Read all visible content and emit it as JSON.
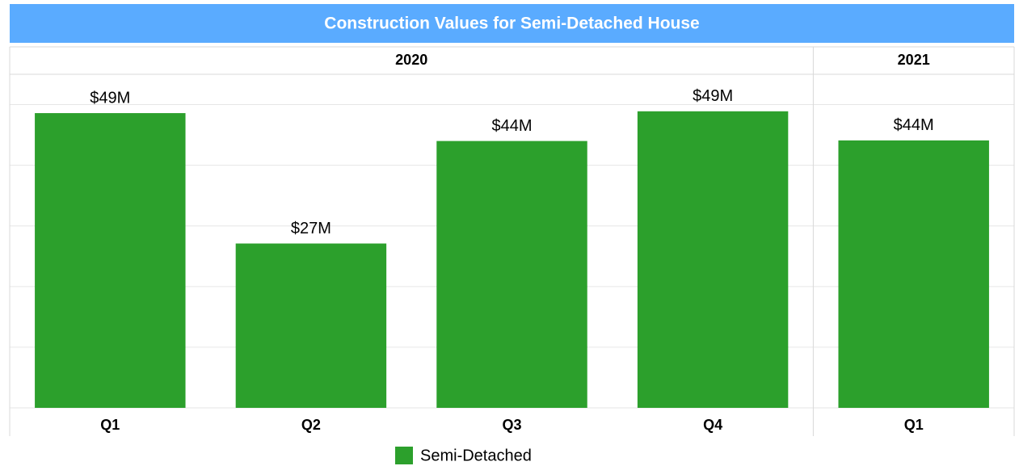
{
  "chart_data": {
    "type": "bar",
    "title": "Construction Values for Semi-Detached House",
    "categories": [
      "Q1",
      "Q2",
      "Q3",
      "Q4",
      "Q1"
    ],
    "groups": [
      {
        "label": "2020",
        "size": 4
      },
      {
        "label": "2021",
        "size": 1
      }
    ],
    "series": [
      {
        "name": "Semi-Detached",
        "color": "#2ca02c",
        "values": [
          48.6,
          27.1,
          44,
          48.9,
          44.1
        ],
        "value_labels": [
          "$49M",
          "$27M",
          "$44M",
          "$49M",
          "$44M"
        ]
      }
    ],
    "ylim": [
      0,
      55
    ],
    "yticks": [
      0,
      10,
      20,
      30,
      40,
      50
    ],
    "grid": true
  }
}
